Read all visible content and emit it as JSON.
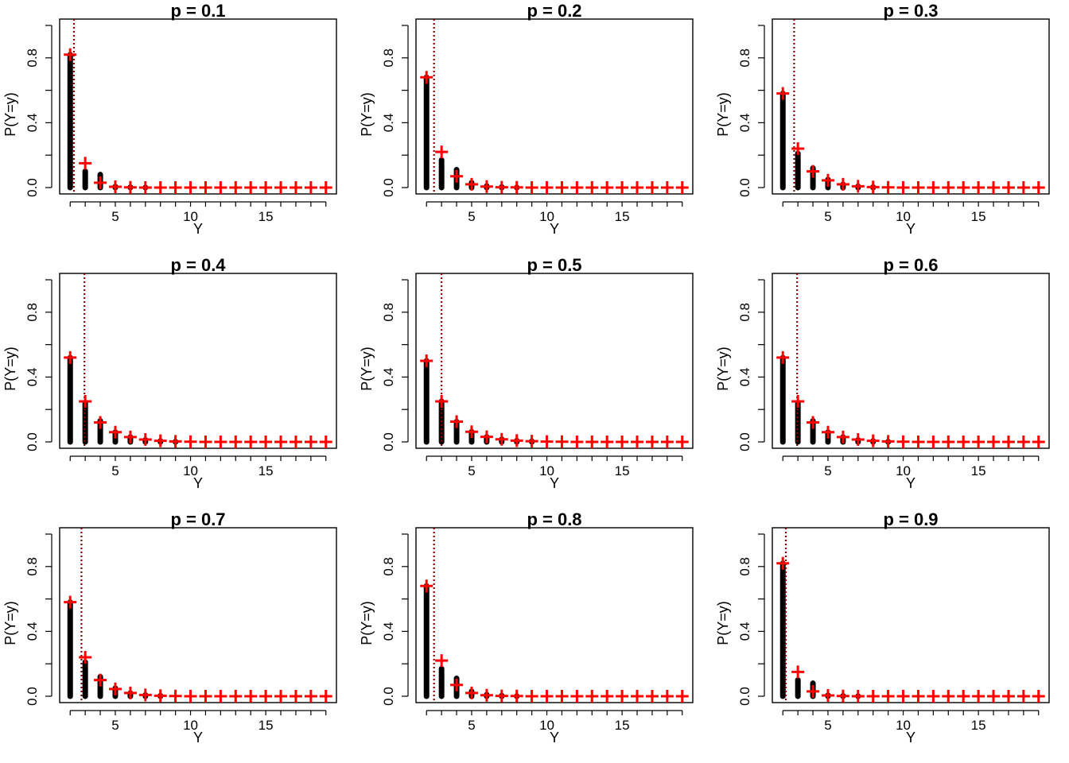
{
  "chart_data": [
    {
      "type": "bar",
      "title": "p = 0.1",
      "xlabel": "Y",
      "ylabel": "P(Y=y)",
      "x_ticks": [
        "5",
        "10",
        "15"
      ],
      "y_ticks": [
        "0.0",
        "0.4",
        "0.8"
      ],
      "xlim": [
        1.3,
        19.7
      ],
      "ylim": [
        0,
        1.0
      ],
      "mean_line_x": 2.25,
      "series": [
        {
          "type": "bar",
          "color": "#000000",
          "x": [
            2,
            3,
            4,
            5,
            6,
            7
          ],
          "values": [
            0.82,
            0.1,
            0.08,
            0.006,
            0.002,
            0.001
          ]
        },
        {
          "type": "scatter",
          "marker": "plus",
          "color": "#ff0000",
          "x": [
            2,
            3,
            4,
            5,
            6,
            7,
            8,
            9,
            10,
            11,
            12,
            13,
            14,
            15,
            16,
            17,
            18,
            19
          ],
          "values": [
            0.82,
            0.15,
            0.03,
            0.005,
            0.001,
            0,
            0,
            0,
            0,
            0,
            0,
            0,
            0,
            0,
            0,
            0,
            0,
            0
          ]
        }
      ]
    },
    {
      "type": "bar",
      "title": "p = 0.2",
      "xlabel": "Y",
      "ylabel": "P(Y=y)",
      "x_ticks": [
        "5",
        "10",
        "15"
      ],
      "y_ticks": [
        "0.0",
        "0.4",
        "0.8"
      ],
      "xlim": [
        1.3,
        19.7
      ],
      "ylim": [
        0,
        1.0
      ],
      "mean_line_x": 2.5,
      "series": [
        {
          "type": "bar",
          "color": "#000000",
          "x": [
            2,
            3,
            4,
            5,
            6,
            7,
            8
          ],
          "values": [
            0.68,
            0.17,
            0.11,
            0.03,
            0.01,
            0.004,
            0.001
          ]
        },
        {
          "type": "scatter",
          "marker": "plus",
          "color": "#ff0000",
          "x": [
            2,
            3,
            4,
            5,
            6,
            7,
            8,
            9,
            10,
            11,
            12,
            13,
            14,
            15,
            16,
            17,
            18,
            19
          ],
          "values": [
            0.68,
            0.22,
            0.07,
            0.02,
            0.006,
            0.002,
            0.001,
            0,
            0,
            0,
            0,
            0,
            0,
            0,
            0,
            0,
            0,
            0
          ]
        }
      ]
    },
    {
      "type": "bar",
      "title": "p = 0.3",
      "xlabel": "Y",
      "ylabel": "P(Y=y)",
      "x_ticks": [
        "5",
        "10",
        "15"
      ],
      "y_ticks": [
        "0.0",
        "0.4",
        "0.8"
      ],
      "xlim": [
        1.3,
        19.7
      ],
      "ylim": [
        0,
        1.0
      ],
      "mean_line_x": 2.75,
      "series": [
        {
          "type": "bar",
          "color": "#000000",
          "x": [
            2,
            3,
            4,
            5,
            6,
            7,
            8
          ],
          "values": [
            0.58,
            0.21,
            0.12,
            0.05,
            0.02,
            0.008,
            0.003
          ]
        },
        {
          "type": "scatter",
          "marker": "plus",
          "color": "#ff0000",
          "x": [
            2,
            3,
            4,
            5,
            6,
            7,
            8,
            9,
            10,
            11,
            12,
            13,
            14,
            15,
            16,
            17,
            18,
            19
          ],
          "values": [
            0.58,
            0.24,
            0.1,
            0.045,
            0.02,
            0.008,
            0.003,
            0.001,
            0,
            0,
            0,
            0,
            0,
            0,
            0,
            0,
            0,
            0
          ]
        }
      ]
    },
    {
      "type": "bar",
      "title": "p = 0.4",
      "xlabel": "Y",
      "ylabel": "P(Y=y)",
      "x_ticks": [
        "5",
        "10",
        "15"
      ],
      "y_ticks": [
        "0.0",
        "0.4",
        "0.8"
      ],
      "xlim": [
        1.3,
        19.7
      ],
      "ylim": [
        0,
        1.0
      ],
      "mean_line_x": 2.95,
      "series": [
        {
          "type": "bar",
          "color": "#000000",
          "x": [
            2,
            3,
            4,
            5,
            6,
            7,
            8,
            9
          ],
          "values": [
            0.52,
            0.24,
            0.13,
            0.06,
            0.03,
            0.013,
            0.006,
            0.002
          ]
        },
        {
          "type": "scatter",
          "marker": "plus",
          "color": "#ff0000",
          "x": [
            2,
            3,
            4,
            5,
            6,
            7,
            8,
            9,
            10,
            11,
            12,
            13,
            14,
            15,
            16,
            17,
            18,
            19
          ],
          "values": [
            0.52,
            0.25,
            0.12,
            0.06,
            0.03,
            0.015,
            0.007,
            0.003,
            0.001,
            0,
            0,
            0,
            0,
            0,
            0,
            0,
            0,
            0
          ]
        }
      ]
    },
    {
      "type": "bar",
      "title": "p = 0.5",
      "xlabel": "Y",
      "ylabel": "P(Y=y)",
      "x_ticks": [
        "5",
        "10",
        "15"
      ],
      "y_ticks": [
        "0.0",
        "0.4",
        "0.8"
      ],
      "xlim": [
        1.3,
        19.7
      ],
      "ylim": [
        0,
        1.0
      ],
      "mean_line_x": 3.0,
      "series": [
        {
          "type": "bar",
          "color": "#000000",
          "x": [
            2,
            3,
            4,
            5,
            6,
            7,
            8,
            9
          ],
          "values": [
            0.5,
            0.25,
            0.125,
            0.0625,
            0.031,
            0.016,
            0.008,
            0.004
          ]
        },
        {
          "type": "scatter",
          "marker": "plus",
          "color": "#ff0000",
          "x": [
            2,
            3,
            4,
            5,
            6,
            7,
            8,
            9,
            10,
            11,
            12,
            13,
            14,
            15,
            16,
            17,
            18,
            19
          ],
          "values": [
            0.5,
            0.25,
            0.125,
            0.0625,
            0.031,
            0.016,
            0.008,
            0.004,
            0.002,
            0.001,
            0,
            0,
            0,
            0,
            0,
            0,
            0,
            0
          ]
        }
      ]
    },
    {
      "type": "bar",
      "title": "p = 0.6",
      "xlabel": "Y",
      "ylabel": "P(Y=y)",
      "x_ticks": [
        "5",
        "10",
        "15"
      ],
      "y_ticks": [
        "0.0",
        "0.4",
        "0.8"
      ],
      "xlim": [
        1.3,
        19.7
      ],
      "ylim": [
        0,
        1.0
      ],
      "mean_line_x": 2.95,
      "series": [
        {
          "type": "bar",
          "color": "#000000",
          "x": [
            2,
            3,
            4,
            5,
            6,
            7,
            8,
            9
          ],
          "values": [
            0.52,
            0.24,
            0.13,
            0.06,
            0.03,
            0.013,
            0.006,
            0.002
          ]
        },
        {
          "type": "scatter",
          "marker": "plus",
          "color": "#ff0000",
          "x": [
            2,
            3,
            4,
            5,
            6,
            7,
            8,
            9,
            10,
            11,
            12,
            13,
            14,
            15,
            16,
            17,
            18,
            19
          ],
          "values": [
            0.52,
            0.25,
            0.12,
            0.06,
            0.03,
            0.015,
            0.007,
            0.003,
            0.001,
            0,
            0,
            0,
            0,
            0,
            0,
            0,
            0,
            0
          ]
        }
      ]
    },
    {
      "type": "bar",
      "title": "p = 0.7",
      "xlabel": "Y",
      "ylabel": "P(Y=y)",
      "x_ticks": [
        "5",
        "10",
        "15"
      ],
      "y_ticks": [
        "0.0",
        "0.4",
        "0.8"
      ],
      "xlim": [
        1.3,
        19.7
      ],
      "ylim": [
        0,
        1.0
      ],
      "mean_line_x": 2.75,
      "series": [
        {
          "type": "bar",
          "color": "#000000",
          "x": [
            2,
            3,
            4,
            5,
            6,
            7,
            8
          ],
          "values": [
            0.58,
            0.21,
            0.12,
            0.05,
            0.02,
            0.008,
            0.003
          ]
        },
        {
          "type": "scatter",
          "marker": "plus",
          "color": "#ff0000",
          "x": [
            2,
            3,
            4,
            5,
            6,
            7,
            8,
            9,
            10,
            11,
            12,
            13,
            14,
            15,
            16,
            17,
            18,
            19
          ],
          "values": [
            0.58,
            0.24,
            0.1,
            0.045,
            0.02,
            0.008,
            0.003,
            0.001,
            0,
            0,
            0,
            0,
            0,
            0,
            0,
            0,
            0,
            0
          ]
        }
      ]
    },
    {
      "type": "bar",
      "title": "p = 0.8",
      "xlabel": "Y",
      "ylabel": "P(Y=y)",
      "x_ticks": [
        "5",
        "10",
        "15"
      ],
      "y_ticks": [
        "0.0",
        "0.4",
        "0.8"
      ],
      "xlim": [
        1.3,
        19.7
      ],
      "ylim": [
        0,
        1.0
      ],
      "mean_line_x": 2.5,
      "series": [
        {
          "type": "bar",
          "color": "#000000",
          "x": [
            2,
            3,
            4,
            5,
            6,
            7,
            8
          ],
          "values": [
            0.68,
            0.17,
            0.11,
            0.03,
            0.01,
            0.004,
            0.001
          ]
        },
        {
          "type": "scatter",
          "marker": "plus",
          "color": "#ff0000",
          "x": [
            2,
            3,
            4,
            5,
            6,
            7,
            8,
            9,
            10,
            11,
            12,
            13,
            14,
            15,
            16,
            17,
            18,
            19
          ],
          "values": [
            0.68,
            0.22,
            0.07,
            0.02,
            0.006,
            0.002,
            0.001,
            0,
            0,
            0,
            0,
            0,
            0,
            0,
            0,
            0,
            0,
            0
          ]
        }
      ]
    },
    {
      "type": "bar",
      "title": "p = 0.9",
      "xlabel": "Y",
      "ylabel": "P(Y=y)",
      "x_ticks": [
        "5",
        "10",
        "15"
      ],
      "y_ticks": [
        "0.0",
        "0.4",
        "0.8"
      ],
      "xlim": [
        1.3,
        19.7
      ],
      "ylim": [
        0,
        1.0
      ],
      "mean_line_x": 2.2,
      "series": [
        {
          "type": "bar",
          "color": "#000000",
          "x": [
            2,
            3,
            4,
            5,
            6,
            7
          ],
          "values": [
            0.82,
            0.1,
            0.08,
            0.006,
            0.002,
            0.001
          ]
        },
        {
          "type": "scatter",
          "marker": "plus",
          "color": "#ff0000",
          "x": [
            2,
            3,
            4,
            5,
            6,
            7,
            8,
            9,
            10,
            11,
            12,
            13,
            14,
            15,
            16,
            17,
            18,
            19
          ],
          "values": [
            0.82,
            0.15,
            0.03,
            0.005,
            0.001,
            0,
            0,
            0,
            0,
            0,
            0,
            0,
            0,
            0,
            0,
            0,
            0,
            0
          ]
        }
      ]
    }
  ],
  "colors": {
    "bar": "#000000",
    "marker": "#ff0000",
    "mean_line": "#8b0000",
    "background": "#ffffff"
  }
}
